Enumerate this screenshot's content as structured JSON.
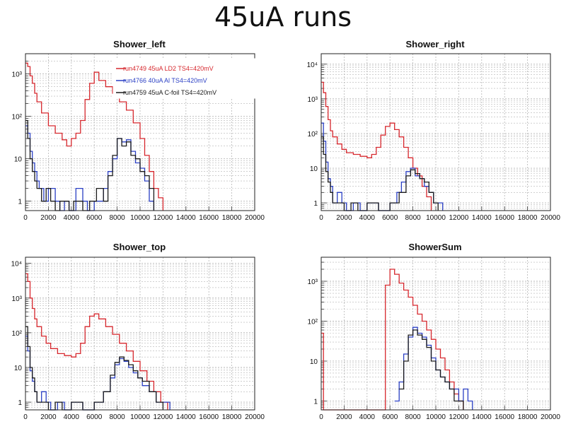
{
  "page": {
    "title": "45uA runs"
  },
  "colors": {
    "run4749": "#d6272d",
    "run4766": "#2a3fc4",
    "run4759": "#1a1a1a",
    "grid": "#b5b5b5"
  },
  "chart_data": [
    {
      "id": "shower_left",
      "type": "line",
      "title": "Shower_left",
      "xlim": [
        0,
        20000
      ],
      "ylim": [
        0.6,
        3000
      ],
      "yscale": "log",
      "xticks": [
        0,
        2000,
        4000,
        6000,
        8000,
        10000,
        12000,
        14000,
        16000,
        18000,
        20000
      ],
      "xtick_labels": [
        "0",
        "2000",
        "4000",
        "6000",
        "8000",
        "10000",
        "12000",
        "14000",
        "16000",
        "18000",
        "20000"
      ],
      "yticks": [
        1,
        10,
        100,
        1000
      ],
      "ytick_labels": [
        "1",
        "10",
        "10²",
        "10³"
      ],
      "grid": true,
      "legend": {
        "placement": "top-right",
        "entries": [
          {
            "label": "run4749 45uA LD2 TS4=420mV",
            "color": "#d6272d"
          },
          {
            "label": "run4766 40uA Al TS4=420mV",
            "color": "#2a3fc4"
          },
          {
            "label": "run4759 45uA C-foil TS4=420mV",
            "color": "#1a1a1a"
          }
        ]
      },
      "series": [
        {
          "name": "run4749 45uA LD2 TS4=420mV",
          "color": "#d6272d",
          "x": [
            0,
            200,
            400,
            600,
            800,
            1000,
            1400,
            2000,
            2600,
            3200,
            3600,
            4000,
            4400,
            4800,
            5200,
            5600,
            6000,
            6400,
            7000,
            7600,
            8200,
            8800,
            9400,
            10000,
            10400,
            10800,
            11200,
            11600,
            12000
          ],
          "y": [
            1800,
            1500,
            900,
            600,
            350,
            220,
            120,
            60,
            40,
            28,
            20,
            30,
            40,
            80,
            250,
            600,
            1100,
            700,
            500,
            350,
            220,
            140,
            70,
            30,
            12,
            5,
            2,
            1.2,
            0
          ]
        },
        {
          "name": "run4766 40uA Al TS4=420mV",
          "color": "#2a3fc4",
          "x": [
            0,
            200,
            400,
            600,
            800,
            1000,
            1200,
            1600,
            2000,
            2600,
            3000,
            3400,
            3800,
            4400,
            5000,
            5400,
            6000,
            6400,
            6800,
            7200,
            7600,
            8000,
            8400,
            8800,
            9200,
            9600,
            10000,
            10400,
            10800,
            11200
          ],
          "y": [
            60,
            40,
            15,
            8,
            5,
            3,
            2,
            1,
            2,
            1,
            0,
            1,
            0,
            2,
            1,
            0,
            1,
            1,
            2,
            5,
            10,
            30,
            25,
            28,
            15,
            8,
            6,
            3,
            1,
            0
          ]
        },
        {
          "name": "run4759 45uA C-foil TS4=420mV",
          "color": "#1a1a1a",
          "x": [
            0,
            200,
            400,
            600,
            800,
            1000,
            1400,
            1800,
            2200,
            2600,
            3000,
            3400,
            3800,
            4200,
            5000,
            5600,
            6200,
            6800,
            7200,
            7600,
            8000,
            8400,
            8800,
            9200,
            9600,
            10000,
            10400,
            10800,
            11200
          ],
          "y": [
            80,
            30,
            10,
            5,
            3,
            2,
            1,
            2,
            1,
            0,
            1,
            1,
            0,
            1,
            0,
            1,
            2,
            1,
            4,
            12,
            30,
            20,
            25,
            12,
            10,
            5,
            4,
            2,
            0
          ]
        }
      ]
    },
    {
      "id": "shower_right",
      "type": "line",
      "title": "Shower_right",
      "xlim": [
        0,
        20000
      ],
      "ylim": [
        0.6,
        20000
      ],
      "yscale": "log",
      "xticks": [
        0,
        2000,
        4000,
        6000,
        8000,
        10000,
        12000,
        14000,
        16000,
        18000,
        20000
      ],
      "xtick_labels": [
        "0",
        "2000",
        "4000",
        "6000",
        "8000",
        "10000",
        "12000",
        "14000",
        "16000",
        "18000",
        "20000"
      ],
      "yticks": [
        1,
        10,
        100,
        1000,
        10000
      ],
      "ytick_labels": [
        "1",
        "10",
        "10²",
        "10³",
        "10⁴"
      ],
      "grid": true,
      "series": [
        {
          "name": "",
          "color": "#d6272d",
          "x": [
            0,
            200,
            400,
            600,
            800,
            1000,
            1400,
            1800,
            2200,
            2800,
            3400,
            4000,
            4400,
            4800,
            5200,
            5600,
            6000,
            6400,
            6800,
            7200,
            7600,
            8000,
            8400,
            8800,
            9200,
            9600
          ],
          "y": [
            3000,
            1500,
            600,
            250,
            120,
            80,
            50,
            35,
            28,
            25,
            22,
            20,
            25,
            40,
            90,
            160,
            200,
            130,
            80,
            40,
            20,
            10,
            6,
            3,
            1.5,
            0
          ]
        },
        {
          "name": "",
          "color": "#2a3fc4",
          "x": [
            0,
            200,
            400,
            600,
            800,
            1000,
            1400,
            1800,
            2200,
            2800,
            3400,
            4000,
            5000,
            6000,
            6600,
            7000,
            7400,
            7800,
            8200,
            8600,
            9000,
            9400,
            9800,
            10200,
            10600
          ],
          "y": [
            200,
            60,
            15,
            5,
            3,
            1,
            2,
            1,
            0,
            1,
            0,
            1,
            0,
            1,
            2,
            4,
            8,
            10,
            6,
            5,
            3,
            2,
            1,
            1,
            0
          ]
        },
        {
          "name": "",
          "color": "#1a1a1a",
          "x": [
            0,
            200,
            400,
            600,
            800,
            1000,
            1400,
            2000,
            2600,
            3200,
            4000,
            5000,
            6000,
            6800,
            7400,
            7800,
            8200,
            8600,
            9000,
            9400,
            9800,
            10200
          ],
          "y": [
            80,
            25,
            8,
            4,
            2,
            1,
            1,
            0,
            1,
            0,
            1,
            0,
            1,
            2,
            6,
            9,
            7,
            5,
            4,
            2,
            1,
            0
          ]
        }
      ]
    },
    {
      "id": "shower_top",
      "type": "line",
      "title": "Shower_top",
      "xlim": [
        0,
        20000
      ],
      "ylim": [
        0.6,
        15000
      ],
      "yscale": "log",
      "xticks": [
        0,
        2000,
        4000,
        6000,
        8000,
        10000,
        12000,
        14000,
        16000,
        18000,
        20000
      ],
      "xtick_labels": [
        "0",
        "2000",
        "4000",
        "6000",
        "8000",
        "10000",
        "12000",
        "14000",
        "16000",
        "18000",
        "20000"
      ],
      "yticks": [
        1,
        10,
        100,
        1000,
        10000
      ],
      "ytick_labels": [
        "1",
        "10",
        "10²",
        "10³",
        "10⁴"
      ],
      "grid": true,
      "series": [
        {
          "name": "",
          "color": "#d6272d",
          "x": [
            0,
            200,
            400,
            600,
            800,
            1000,
            1400,
            1800,
            2200,
            2800,
            3400,
            4000,
            4400,
            4800,
            5200,
            5600,
            6000,
            6400,
            7000,
            7600,
            8200,
            8800,
            9400,
            10000,
            10600,
            11200,
            11800,
            12400
          ],
          "y": [
            5000,
            3000,
            1000,
            500,
            250,
            150,
            80,
            50,
            35,
            25,
            22,
            20,
            25,
            50,
            150,
            300,
            350,
            250,
            150,
            90,
            50,
            30,
            15,
            8,
            4,
            2,
            1,
            0
          ]
        },
        {
          "name": "",
          "color": "#2a3fc4",
          "x": [
            0,
            200,
            400,
            600,
            800,
            1000,
            1400,
            1800,
            2200,
            2800,
            3400,
            4000,
            5000,
            6000,
            6800,
            7400,
            7800,
            8200,
            8600,
            9000,
            9400,
            9800,
            10200,
            10800,
            11400,
            12000,
            12600
          ],
          "y": [
            80,
            30,
            8,
            4,
            2,
            1,
            2,
            1,
            0,
            1,
            0,
            1,
            0,
            1,
            2,
            5,
            12,
            18,
            15,
            10,
            7,
            5,
            3,
            2,
            1,
            1,
            0
          ]
        },
        {
          "name": "",
          "color": "#1a1a1a",
          "x": [
            0,
            200,
            400,
            600,
            800,
            1000,
            1400,
            2000,
            2600,
            3200,
            4000,
            5000,
            6000,
            6800,
            7400,
            7800,
            8200,
            8600,
            9000,
            9400,
            9800,
            10200,
            10800,
            11400,
            12000
          ],
          "y": [
            150,
            40,
            10,
            5,
            2,
            1,
            1,
            0,
            1,
            0,
            1,
            0,
            1,
            2,
            6,
            14,
            20,
            16,
            12,
            8,
            5,
            4,
            2,
            1,
            0
          ]
        }
      ]
    },
    {
      "id": "shower_sum",
      "type": "line",
      "title": "ShowerSum",
      "xlim": [
        0,
        20000
      ],
      "ylim": [
        0.6,
        4000
      ],
      "yscale": "log",
      "xticks": [
        0,
        2000,
        4000,
        6000,
        8000,
        10000,
        12000,
        14000,
        16000,
        18000,
        20000
      ],
      "xtick_labels": [
        "0",
        "2000",
        "4000",
        "6000",
        "8000",
        "10000",
        "12000",
        "14000",
        "16000",
        "18000",
        "20000"
      ],
      "yticks": [
        1,
        10,
        100,
        1000
      ],
      "ytick_labels": [
        "1",
        "10",
        "10²",
        "10³"
      ],
      "grid": true,
      "series": [
        {
          "name": "",
          "color": "#d6272d",
          "x": [
            0,
            200,
            5400,
            5600,
            6000,
            6400,
            6800,
            7200,
            7600,
            8000,
            8400,
            8800,
            9200,
            9600,
            10000,
            10400,
            10800,
            11200,
            11600,
            12000,
            12400
          ],
          "y": [
            50,
            0,
            0,
            800,
            2000,
            1500,
            900,
            600,
            400,
            250,
            150,
            100,
            60,
            35,
            20,
            12,
            6,
            3,
            1.5,
            1,
            0
          ]
        },
        {
          "name": "",
          "color": "#2a3fc4",
          "x": [
            6400,
            6800,
            7200,
            7600,
            8000,
            8400,
            8800,
            9200,
            9600,
            10000,
            10400,
            10800,
            11200,
            11600,
            12000,
            12400,
            12800,
            13200
          ],
          "y": [
            1,
            3,
            15,
            40,
            70,
            50,
            40,
            25,
            12,
            6,
            4,
            3,
            2,
            2,
            1,
            2,
            1,
            0
          ]
        },
        {
          "name": "",
          "color": "#1a1a1a",
          "x": [
            6800,
            7200,
            7600,
            8000,
            8400,
            8800,
            9200,
            9600,
            10000,
            10400,
            10800,
            11200,
            11600,
            12000,
            12400
          ],
          "y": [
            2,
            10,
            45,
            60,
            45,
            35,
            22,
            10,
            6,
            4,
            3,
            2,
            1,
            1,
            0
          ]
        }
      ]
    }
  ]
}
